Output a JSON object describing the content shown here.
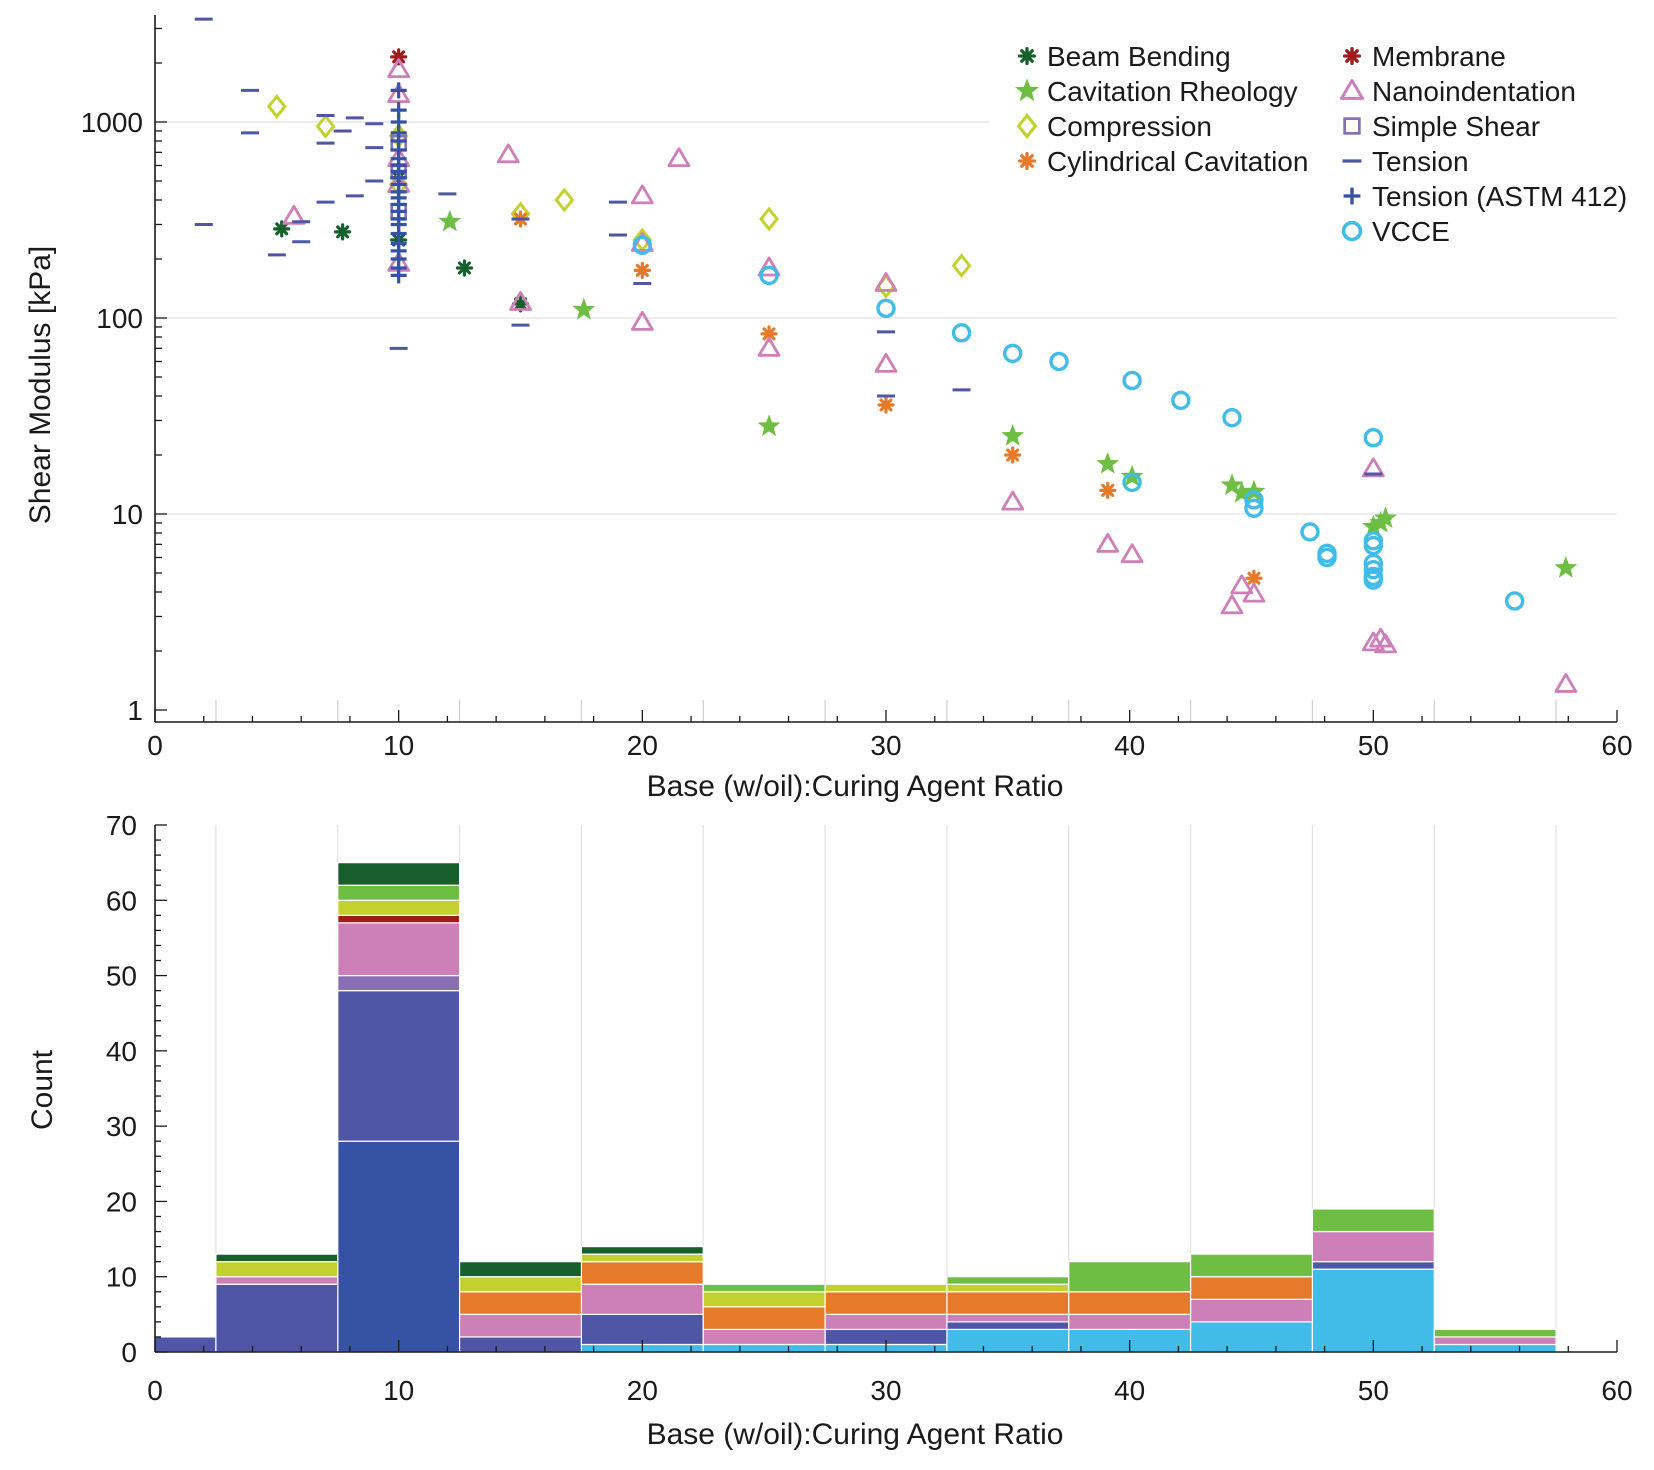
{
  "colors": {
    "beam_bending": "#17602e",
    "cavitation_rheology": "#6fbe44",
    "compression": "#c3d12f",
    "cylindrical_cavitation": "#e57a2a",
    "membrane": "#9e1b1e",
    "nanoindentation": "#cd7fb8",
    "simple_shear": "#8a6fb5",
    "tension": "#4e56a5",
    "tension_astm": "#3552a4",
    "vcce": "#41bbe8",
    "grid": "#e2e2e2",
    "axis": "#1a1a1a"
  },
  "chart_data": [
    {
      "type": "scatter",
      "xlabel": "Base (w/oil):Curing Agent Ratio",
      "ylabel": "Shear Modulus [kPa]",
      "xlim": [
        0,
        60
      ],
      "ylim": [
        1,
        4000
      ],
      "yscale": "log",
      "xticks": [
        "0",
        "10",
        "20",
        "30",
        "40",
        "50",
        "60"
      ],
      "yticks": [
        "1",
        "10",
        "100",
        "1000"
      ],
      "grid": "horizontal at decades, vertical at bin edges",
      "legend": [
        {
          "key": "beam_bending",
          "label": "Beam Bending",
          "marker": "asterisk"
        },
        {
          "key": "cavitation_rheology",
          "label": "Cavitation Rheology",
          "marker": "star"
        },
        {
          "key": "compression",
          "label": "Compression",
          "marker": "diamond"
        },
        {
          "key": "cylindrical_cavitation",
          "label": "Cylindrical Cavitation",
          "marker": "asterisk"
        },
        {
          "key": "membrane",
          "label": "Membrane",
          "marker": "asterisk"
        },
        {
          "key": "nanoindentation",
          "label": "Nanoindentation",
          "marker": "triangle"
        },
        {
          "key": "simple_shear",
          "label": "Simple Shear",
          "marker": "square"
        },
        {
          "key": "tension",
          "label": "Tension",
          "marker": "dash"
        },
        {
          "key": "tension_astm",
          "label": "Tension (ASTM 412)",
          "marker": "plus"
        },
        {
          "key": "vcce",
          "label": "VCCE",
          "marker": "circle"
        }
      ],
      "series": [
        {
          "key": "beam_bending",
          "points": [
            [
              5.2,
              285
            ],
            [
              7.7,
              275
            ],
            [
              10,
              250
            ],
            [
              10,
              520
            ],
            [
              12.7,
              180
            ],
            [
              15,
              118
            ]
          ]
        },
        {
          "key": "cavitation_rheology",
          "points": [
            [
              12.1,
              310
            ],
            [
              17.6,
              110
            ],
            [
              25.2,
              28
            ],
            [
              35.2,
              25
            ],
            [
              39.1,
              18
            ],
            [
              40.1,
              15.5
            ],
            [
              44.2,
              14
            ],
            [
              44.6,
              12.8
            ],
            [
              45.1,
              13
            ],
            [
              50,
              8.6
            ],
            [
              50.3,
              9
            ],
            [
              50.5,
              9.5
            ],
            [
              57.9,
              5.3
            ]
          ]
        },
        {
          "key": "compression",
          "points": [
            [
              5,
              1200
            ],
            [
              7,
              950
            ],
            [
              10,
              850
            ],
            [
              10,
              480
            ],
            [
              15,
              340
            ],
            [
              16.8,
              400
            ],
            [
              20,
              250
            ],
            [
              25.2,
              320
            ],
            [
              30,
              145
            ],
            [
              33.1,
              185
            ]
          ]
        },
        {
          "key": "cylindrical_cavitation",
          "points": [
            [
              15,
              320
            ],
            [
              20,
              175
            ],
            [
              25.2,
              83
            ],
            [
              30,
              36
            ],
            [
              35.2,
              20
            ],
            [
              39.1,
              13.2
            ],
            [
              45.1,
              4.7
            ]
          ]
        },
        {
          "key": "membrane",
          "points": [
            [
              10,
              2150
            ]
          ]
        },
        {
          "key": "nanoindentation",
          "points": [
            [
              5.7,
              330
            ],
            [
              10,
              1850
            ],
            [
              10,
              1380
            ],
            [
              10,
              650
            ],
            [
              10,
              480
            ],
            [
              10,
              190
            ],
            [
              14.5,
              680
            ],
            [
              15,
              120
            ],
            [
              20,
              420
            ],
            [
              20,
              240
            ],
            [
              20,
              95
            ],
            [
              21.5,
              650
            ],
            [
              25.2,
              180
            ],
            [
              25.2,
              70
            ],
            [
              30,
              150
            ],
            [
              30,
              58
            ],
            [
              35.2,
              11.5
            ],
            [
              39.1,
              7
            ],
            [
              40.1,
              6.2
            ],
            [
              44.2,
              3.4
            ],
            [
              44.6,
              4.3
            ],
            [
              45.1,
              3.9
            ],
            [
              50,
              17
            ],
            [
              50,
              2.2
            ],
            [
              50.3,
              2.3
            ],
            [
              50.5,
              2.15
            ],
            [
              57.9,
              1.35
            ]
          ]
        },
        {
          "key": "simple_shear",
          "points": [
            [
              10,
              780
            ],
            [
              10,
              560
            ],
            [
              10,
              350
            ]
          ]
        },
        {
          "key": "tension",
          "points": [
            [
              2,
              3350
            ],
            [
              2,
              300
            ],
            [
              3.9,
              1450
            ],
            [
              3.9,
              880
            ],
            [
              5,
              210
            ],
            [
              6,
              310
            ],
            [
              6,
              245
            ],
            [
              7,
              1080
            ],
            [
              7,
              780
            ],
            [
              7,
              390
            ],
            [
              7.7,
              900
            ],
            [
              8.2,
              1050
            ],
            [
              8.2,
              420
            ],
            [
              9,
              740
            ],
            [
              9,
              980
            ],
            [
              9,
              500
            ],
            [
              10,
              70
            ],
            [
              12,
              430
            ],
            [
              15,
              320
            ],
            [
              15,
              92
            ],
            [
              19,
              390
            ],
            [
              19,
              265
            ],
            [
              20,
              150
            ],
            [
              30,
              85
            ],
            [
              30,
              40
            ],
            [
              33.1,
              43
            ],
            [
              50,
              16
            ]
          ]
        },
        {
          "key": "tension_astm",
          "points": [
            [
              10,
              1450
            ],
            [
              10,
              1150
            ],
            [
              10,
              1000
            ],
            [
              10,
              880
            ],
            [
              10,
              800
            ],
            [
              10,
              720
            ],
            [
              10,
              650
            ],
            [
              10,
              600
            ],
            [
              10,
              560
            ],
            [
              10,
              520
            ],
            [
              10,
              480
            ],
            [
              10,
              440
            ],
            [
              10,
              410
            ],
            [
              10,
              380
            ],
            [
              10,
              350
            ],
            [
              10,
              320
            ],
            [
              10,
              300
            ],
            [
              10,
              270
            ],
            [
              10,
              240
            ],
            [
              10,
              220
            ],
            [
              10,
              200
            ],
            [
              10,
              180
            ],
            [
              10,
              165
            ]
          ]
        },
        {
          "key": "vcce",
          "points": [
            [
              20,
              235
            ],
            [
              25.2,
              165
            ],
            [
              30,
              112
            ],
            [
              33.1,
              84
            ],
            [
              35.2,
              66
            ],
            [
              37.1,
              60
            ],
            [
              40.1,
              48
            ],
            [
              40.1,
              14.5
            ],
            [
              42.1,
              38
            ],
            [
              44.2,
              31
            ],
            [
              45.1,
              11.8
            ],
            [
              45.1,
              10.7
            ],
            [
              47.4,
              8.1
            ],
            [
              48.1,
              6.3
            ],
            [
              48.1,
              6
            ],
            [
              50,
              24.5
            ],
            [
              50,
              7.3
            ],
            [
              50,
              6.9
            ],
            [
              50,
              5.6
            ],
            [
              50,
              5.2
            ],
            [
              50,
              4.8
            ],
            [
              50,
              4.6
            ],
            [
              55.8,
              3.6
            ]
          ]
        }
      ]
    },
    {
      "type": "bar",
      "stacked": true,
      "xlabel": "Base (w/oil):Curing Agent Ratio",
      "ylabel": "Count",
      "xlim": [
        0,
        60
      ],
      "ylim": [
        0,
        70
      ],
      "xticks": [
        "0",
        "10",
        "20",
        "30",
        "40",
        "50",
        "60"
      ],
      "yticks": [
        "0",
        "10",
        "20",
        "30",
        "40",
        "50",
        "60",
        "70"
      ],
      "bin_edges": [
        0,
        2.5,
        7.5,
        12.5,
        17.5,
        22.5,
        27.5,
        32.5,
        37.5,
        42.5,
        47.5,
        52.5,
        57.5
      ],
      "stack_order": [
        "vcce",
        "tension_astm",
        "tension",
        "simple_shear",
        "nanoindentation",
        "membrane",
        "cylindrical_cavitation",
        "compression",
        "cavitation_rheology",
        "beam_bending"
      ],
      "series": [
        {
          "key": "vcce",
          "name": "VCCE",
          "values": [
            0,
            0,
            0,
            0,
            1,
            1,
            1,
            3,
            3,
            4,
            11,
            1
          ]
        },
        {
          "key": "tension_astm",
          "name": "Tension (ASTM 412)",
          "values": [
            0,
            0,
            28,
            0,
            0,
            0,
            0,
            0,
            0,
            0,
            0,
            0
          ]
        },
        {
          "key": "tension",
          "name": "Tension",
          "values": [
            2,
            9,
            20,
            2,
            4,
            0,
            2,
            1,
            0,
            0,
            1,
            0
          ]
        },
        {
          "key": "simple_shear",
          "name": "Simple Shear",
          "values": [
            0,
            0,
            2,
            0,
            0,
            0,
            0,
            0,
            0,
            0,
            0,
            0
          ]
        },
        {
          "key": "nanoindentation",
          "name": "Nanoindentation",
          "values": [
            0,
            1,
            7,
            3,
            4,
            2,
            2,
            1,
            2,
            3,
            4,
            1
          ]
        },
        {
          "key": "membrane",
          "name": "Membrane",
          "values": [
            0,
            0,
            1,
            0,
            0,
            0,
            0,
            0,
            0,
            0,
            0,
            0
          ]
        },
        {
          "key": "cylindrical_cavitation",
          "name": "Cylindrical Cavitation",
          "values": [
            0,
            0,
            0,
            3,
            3,
            3,
            3,
            3,
            3,
            3,
            0,
            0
          ]
        },
        {
          "key": "compression",
          "name": "Compression",
          "values": [
            0,
            2,
            2,
            2,
            1,
            2,
            1,
            1,
            0,
            0,
            0,
            0
          ]
        },
        {
          "key": "cavitation_rheology",
          "name": "Cavitation Rheology",
          "values": [
            0,
            0,
            2,
            0,
            0,
            1,
            0,
            1,
            4,
            3,
            3,
            1
          ]
        },
        {
          "key": "beam_bending",
          "name": "Beam Bending",
          "values": [
            0,
            1,
            3,
            2,
            1,
            0,
            0,
            0,
            0,
            0,
            0,
            0
          ]
        }
      ]
    }
  ]
}
